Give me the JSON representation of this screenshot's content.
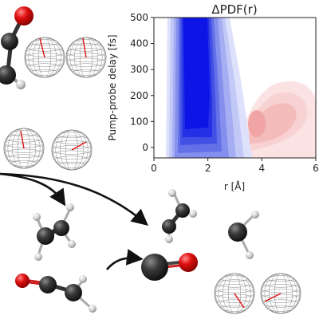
{
  "plot": {
    "title": "ΔPDF(r)",
    "x_label": "r [Å]",
    "y_label": "Pump-probe delay [fs]",
    "colors": {
      "depletion": "#0a10e6",
      "gain": "#f08a8a"
    }
  },
  "chart_data": {
    "type": "heatmap",
    "title": "ΔPDF(r)",
    "xlabel": "r [Å]",
    "ylabel": "Pump-probe delay [fs]",
    "xlim": [
      0,
      6
    ],
    "ylim": [
      -40,
      500
    ],
    "x_ticks": [
      0,
      2,
      4,
      6
    ],
    "y_ticks": [
      0,
      100,
      200,
      300,
      400,
      500
    ],
    "features": [
      {
        "sign": "negative",
        "r_range": [
          1.2,
          2.8
        ],
        "delay_range": [
          -40,
          500
        ],
        "peak_r": 2.0
      },
      {
        "sign": "positive",
        "r_range": [
          3.0,
          5.2
        ],
        "delay_range": [
          20,
          320
        ],
        "peak_r": 3.8,
        "peak_delay": 90
      }
    ],
    "grid": false
  },
  "molecules": {
    "colors": {
      "carbon": "#2b2b2b",
      "oxygen": "#d81414",
      "hydrogen": "#d4d4d4"
    }
  }
}
